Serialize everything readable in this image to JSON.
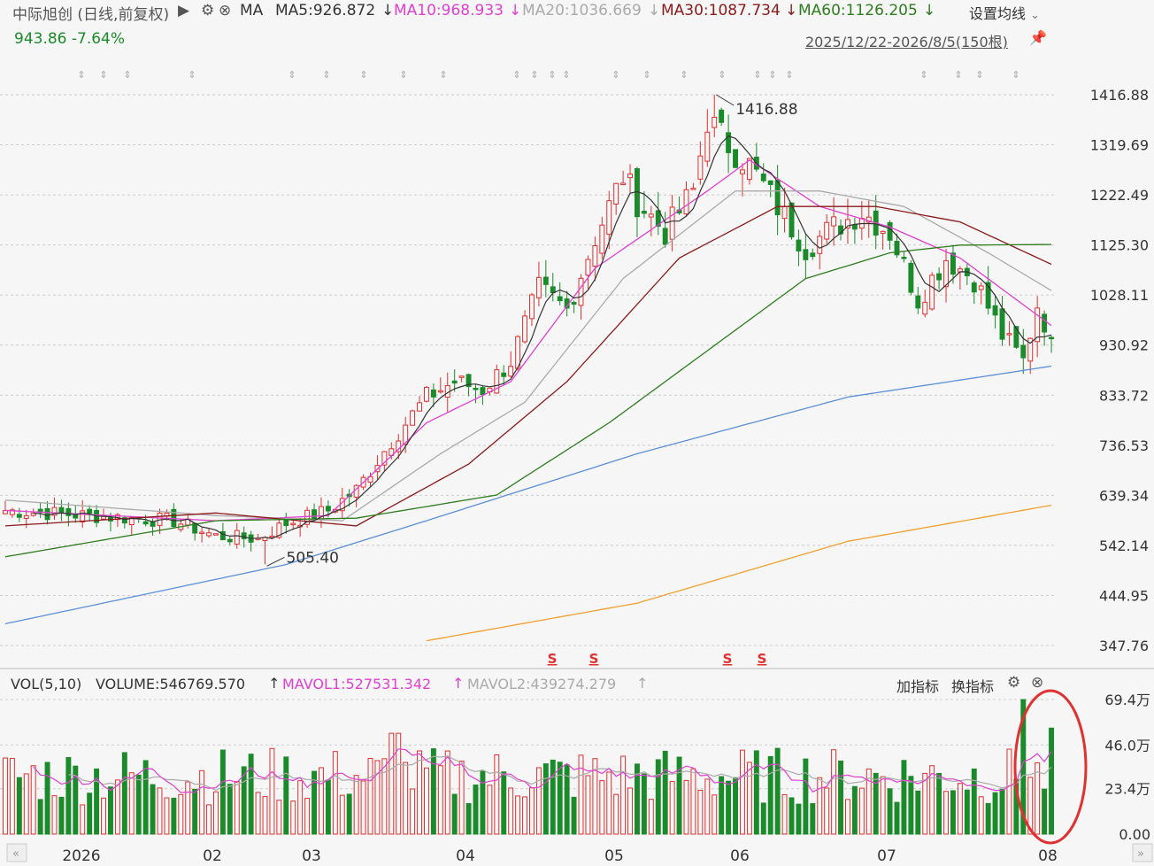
{
  "header": {
    "stock_name": "中际旭创 (日线,前复权)",
    "play_glyph": "▶",
    "ma_label": "MA",
    "ma5": "MA5:926.872",
    "ma10": "MA10:968.933",
    "ma20": "MA20:1036.669",
    "ma30": "MA30:1087.734",
    "ma60": "MA60:1126.205",
    "down_arrow": "↓",
    "settings_label": "设置均线",
    "settings_chevron": "⌄",
    "price_change": "943.86 -7.64%",
    "date_range": "2025/12/22-2026/8/5(150根)",
    "pin_icon": "pin-icon"
  },
  "colors": {
    "ma5": "#333333",
    "ma10": "#e040d0",
    "ma20": "#aaaaaa",
    "ma30": "#8b1a1a",
    "ma60": "#2e7d1e",
    "ma120": "#5b8fd6",
    "ma250": "#f0a030",
    "up": "#e03030",
    "down": "#1a8a2a",
    "grid": "#cccccc",
    "annotation_circle": "#e03030"
  },
  "price_axis": [
    "1416.88",
    "1319.69",
    "1222.49",
    "1125.30",
    "1028.11",
    "930.92",
    "833.72",
    "736.53",
    "639.34",
    "542.14",
    "444.95",
    "347.76"
  ],
  "annotations": {
    "high": "1416.88",
    "low": "505.40",
    "s_marks": [
      "S",
      "S",
      "S",
      "S"
    ]
  },
  "volume_panel": {
    "vol_label": "VOL(5,10)",
    "volume": "VOLUME:546769.570",
    "mavol1": "MAVOL1:527531.342",
    "mavol2": "MAVOL2:439274.279",
    "up_arrow": "↑",
    "add_indicator": "加指标",
    "switch_indicator": "换指标",
    "axis": [
      "69.4万",
      "46.0万",
      "23.4万",
      "0.00"
    ]
  },
  "x_axis": [
    "2026",
    "02",
    "03",
    "04",
    "05",
    "06",
    "07",
    "08"
  ],
  "chart_data": {
    "type": "candlestick",
    "title": "中际旭创 (日线,前复权)",
    "x_range": [
      "2025/12/22",
      "2026/8/5"
    ],
    "bars": 150,
    "ylim": [
      347.76,
      1416.88
    ],
    "last_close": 943.86,
    "change_pct": -7.64,
    "period_high": 1416.88,
    "period_low": 505.4,
    "series": [
      {
        "name": "MA5",
        "value": 926.872
      },
      {
        "name": "MA10",
        "value": 968.933
      },
      {
        "name": "MA20",
        "value": 1036.669
      },
      {
        "name": "MA30",
        "value": 1087.734
      },
      {
        "name": "MA60",
        "value": 1126.205
      }
    ],
    "price_keyframes": [
      {
        "x": 0,
        "y": 610
      },
      {
        "x": 12,
        "y": 600
      },
      {
        "x": 24,
        "y": 590
      },
      {
        "x": 30,
        "y": 560
      },
      {
        "x": 36,
        "y": 555
      },
      {
        "x": 40,
        "y": 585
      },
      {
        "x": 46,
        "y": 610
      },
      {
        "x": 50,
        "y": 650
      },
      {
        "x": 55,
        "y": 745
      },
      {
        "x": 60,
        "y": 830
      },
      {
        "x": 64,
        "y": 860
      },
      {
        "x": 68,
        "y": 845
      },
      {
        "x": 72,
        "y": 900
      },
      {
        "x": 76,
        "y": 1040
      },
      {
        "x": 80,
        "y": 1000
      },
      {
        "x": 84,
        "y": 1140
      },
      {
        "x": 88,
        "y": 1260
      },
      {
        "x": 90,
        "y": 1210
      },
      {
        "x": 94,
        "y": 1150
      },
      {
        "x": 98,
        "y": 1230
      },
      {
        "x": 100,
        "y": 1370
      },
      {
        "x": 103,
        "y": 1320
      },
      {
        "x": 106,
        "y": 1280
      },
      {
        "x": 110,
        "y": 1200
      },
      {
        "x": 114,
        "y": 1120
      },
      {
        "x": 118,
        "y": 1160
      },
      {
        "x": 122,
        "y": 1190
      },
      {
        "x": 126,
        "y": 1150
      },
      {
        "x": 130,
        "y": 1020
      },
      {
        "x": 134,
        "y": 1100
      },
      {
        "x": 138,
        "y": 1060
      },
      {
        "x": 142,
        "y": 950
      },
      {
        "x": 145,
        "y": 900
      },
      {
        "x": 147,
        "y": 1010
      },
      {
        "x": 149,
        "y": 943.86
      }
    ],
    "ma_keyframes": {
      "MA10": [
        {
          "x": 0,
          "y": 610
        },
        {
          "x": 30,
          "y": 590
        },
        {
          "x": 46,
          "y": 600
        },
        {
          "x": 60,
          "y": 780
        },
        {
          "x": 72,
          "y": 860
        },
        {
          "x": 84,
          "y": 1080
        },
        {
          "x": 100,
          "y": 1230
        },
        {
          "x": 106,
          "y": 1290
        },
        {
          "x": 116,
          "y": 1200
        },
        {
          "x": 126,
          "y": 1160
        },
        {
          "x": 136,
          "y": 1100
        },
        {
          "x": 149,
          "y": 968.933
        }
      ],
      "MA20": [
        {
          "x": 0,
          "y": 630
        },
        {
          "x": 30,
          "y": 600
        },
        {
          "x": 48,
          "y": 590
        },
        {
          "x": 62,
          "y": 720
        },
        {
          "x": 74,
          "y": 820
        },
        {
          "x": 88,
          "y": 1060
        },
        {
          "x": 104,
          "y": 1230
        },
        {
          "x": 116,
          "y": 1230
        },
        {
          "x": 128,
          "y": 1200
        },
        {
          "x": 140,
          "y": 1110
        },
        {
          "x": 149,
          "y": 1036.669
        }
      ],
      "MA30": [
        {
          "x": 0,
          "y": 580
        },
        {
          "x": 30,
          "y": 605
        },
        {
          "x": 50,
          "y": 580
        },
        {
          "x": 66,
          "y": 700
        },
        {
          "x": 80,
          "y": 860
        },
        {
          "x": 96,
          "y": 1100
        },
        {
          "x": 110,
          "y": 1200
        },
        {
          "x": 124,
          "y": 1200
        },
        {
          "x": 136,
          "y": 1170
        },
        {
          "x": 149,
          "y": 1087.734
        }
      ],
      "MA60": [
        {
          "x": 0,
          "y": 520
        },
        {
          "x": 30,
          "y": 590
        },
        {
          "x": 50,
          "y": 595
        },
        {
          "x": 70,
          "y": 640
        },
        {
          "x": 86,
          "y": 780
        },
        {
          "x": 100,
          "y": 920
        },
        {
          "x": 114,
          "y": 1060
        },
        {
          "x": 126,
          "y": 1110
        },
        {
          "x": 136,
          "y": 1125
        },
        {
          "x": 149,
          "y": 1126.205
        }
      ],
      "MA120": [
        {
          "x": 0,
          "y": 390
        },
        {
          "x": 40,
          "y": 505
        },
        {
          "x": 60,
          "y": 590
        },
        {
          "x": 90,
          "y": 720
        },
        {
          "x": 120,
          "y": 830
        },
        {
          "x": 149,
          "y": 890
        }
      ],
      "MA250": [
        {
          "x": 60,
          "y": 357
        },
        {
          "x": 90,
          "y": 430
        },
        {
          "x": 120,
          "y": 550
        },
        {
          "x": 149,
          "y": 620
        }
      ]
    },
    "volume_ylim": [
      0,
      694000
    ],
    "volume_last": 546769.57,
    "mavol1": 527531.342,
    "mavol2": 439274.279
  }
}
